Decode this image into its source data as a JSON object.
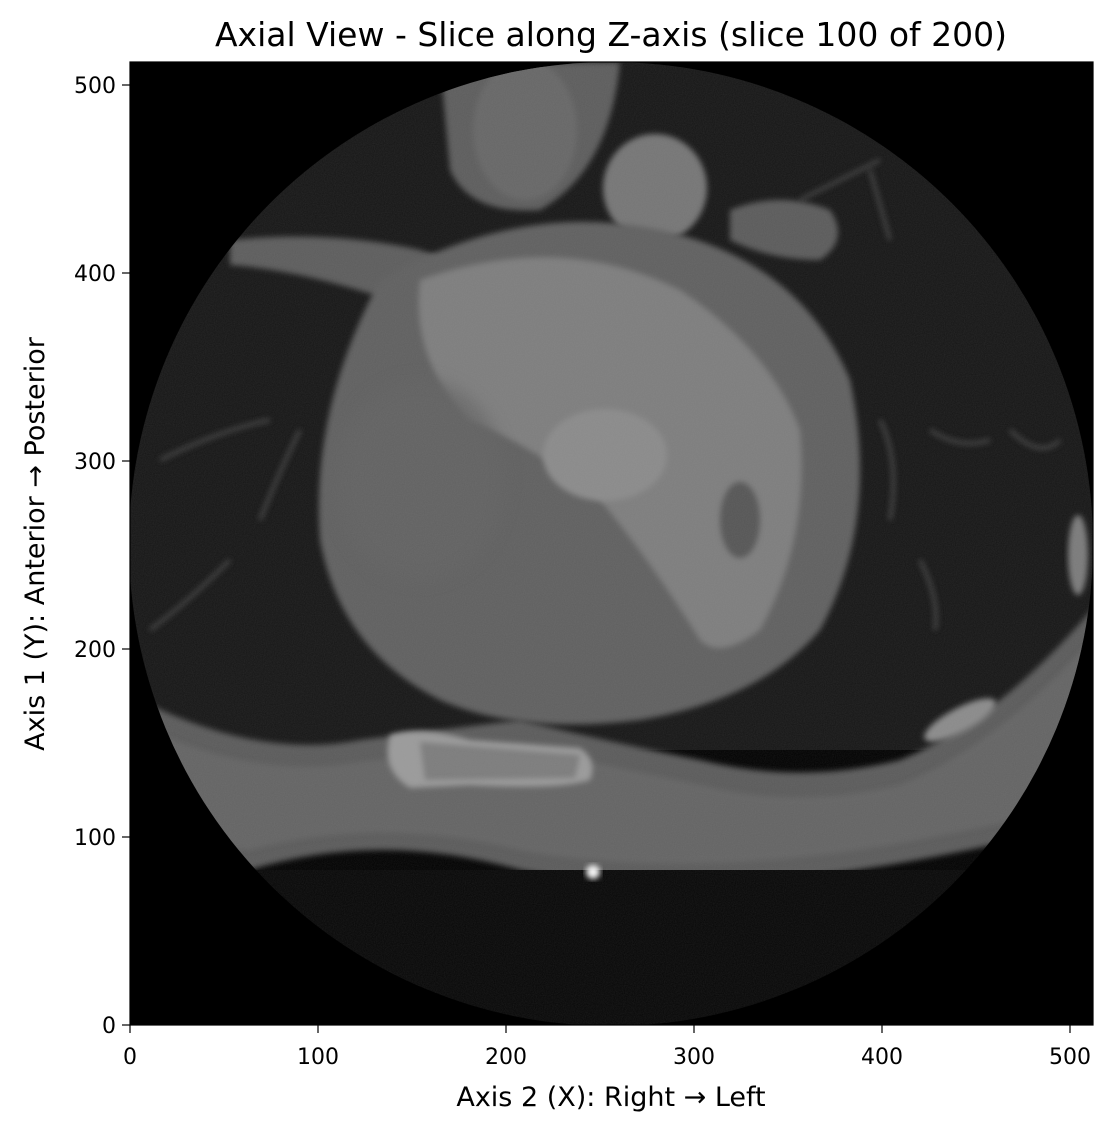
{
  "figure": {
    "title": "Axial View - Slice along Z-axis (slice 100 of 200)",
    "xlabel": "Axis 2 (X): Right → Left",
    "ylabel": "Axis 1 (Y): Anterior → Posterior",
    "x_ticks": [
      "0",
      "100",
      "200",
      "300",
      "400",
      "500"
    ],
    "y_ticks": [
      "0",
      "100",
      "200",
      "300",
      "400",
      "500"
    ],
    "x_range": [
      0,
      512
    ],
    "y_range": [
      0,
      512
    ],
    "colormap": "grayscale",
    "image": {
      "type": "CT axial slice",
      "background": "#000000"
    }
  }
}
